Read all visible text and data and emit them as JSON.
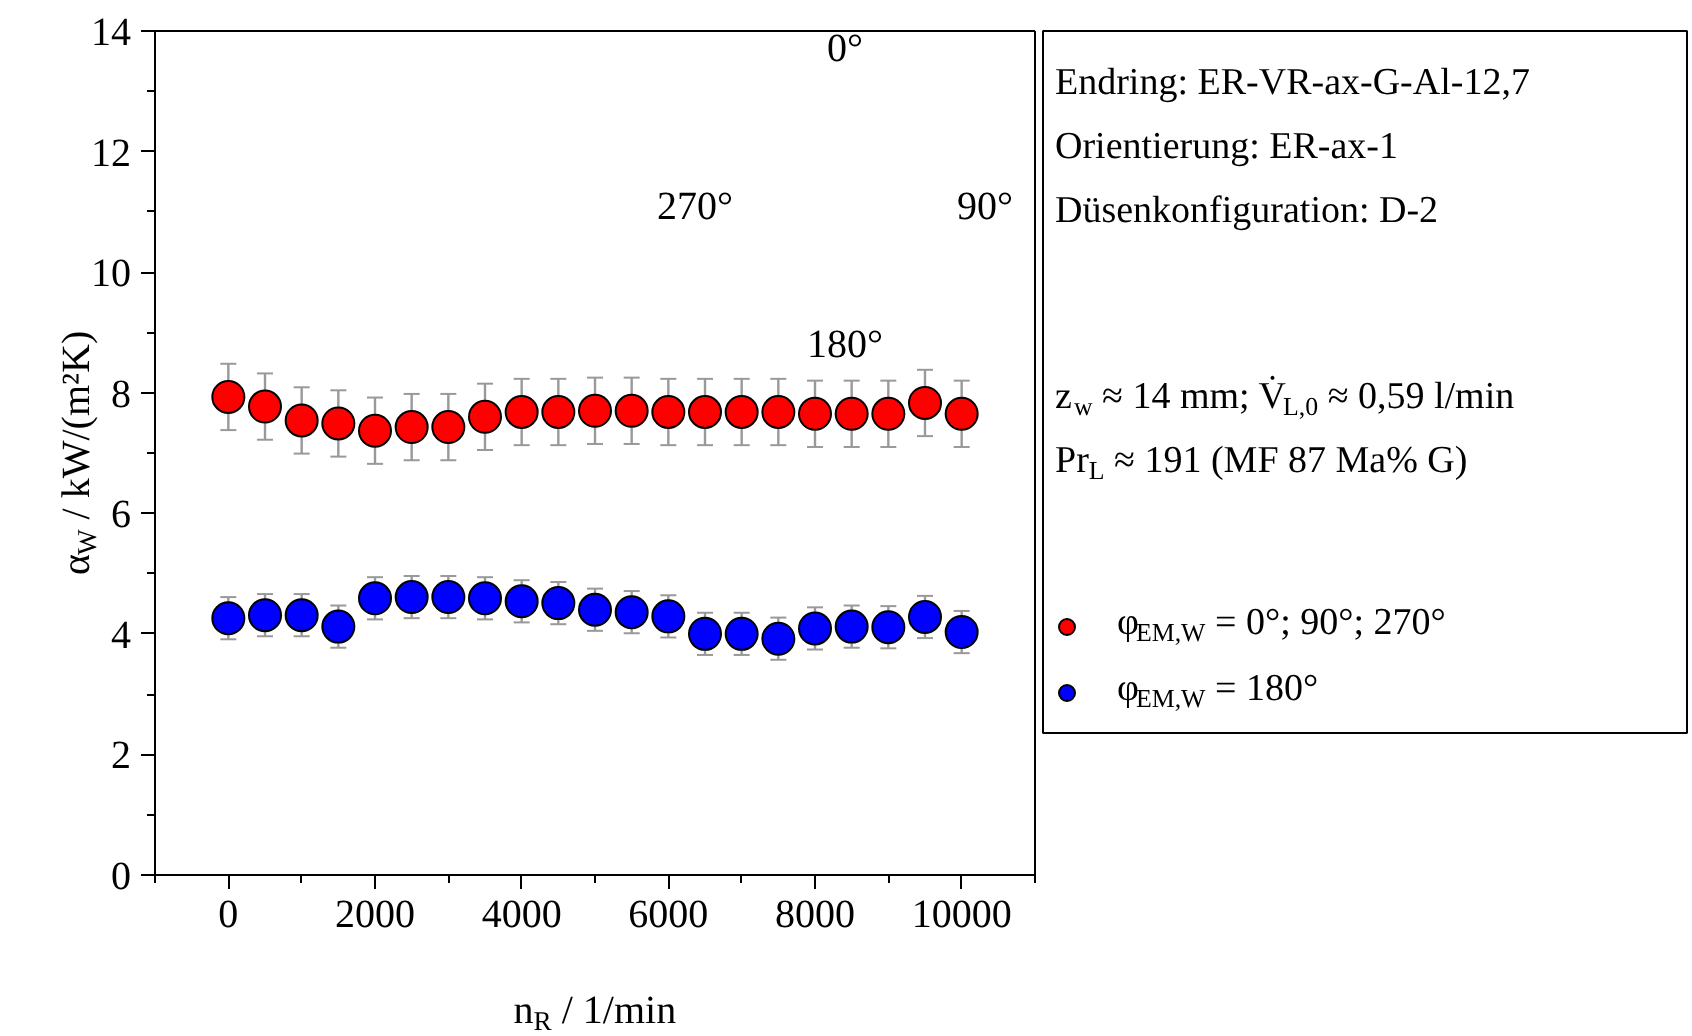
{
  "chart_data": {
    "type": "scatter",
    "xlabel": "n$_{R}$ / 1/min",
    "ylabel": "α$_{W}$ / kW/(m²K)",
    "x": [
      0,
      500,
      1000,
      1500,
      2000,
      2500,
      3000,
      3500,
      4000,
      4500,
      5000,
      5500,
      6000,
      6500,
      7000,
      7500,
      8000,
      8500,
      9000,
      9500,
      10000
    ],
    "series": [
      {
        "name": "φ$_{EM,W}$ = 0°; 90°; 270°",
        "color": "#ff0000",
        "values": [
          7.93,
          7.77,
          7.54,
          7.49,
          7.37,
          7.43,
          7.43,
          7.6,
          7.68,
          7.68,
          7.7,
          7.7,
          7.68,
          7.68,
          7.68,
          7.68,
          7.65,
          7.65,
          7.65,
          7.83,
          7.65
        ],
        "errors": [
          0.55,
          0.55,
          0.55,
          0.55,
          0.55,
          0.55,
          0.55,
          0.55,
          0.55,
          0.55,
          0.55,
          0.55,
          0.55,
          0.55,
          0.55,
          0.55,
          0.55,
          0.55,
          0.55,
          0.55,
          0.55
        ]
      },
      {
        "name": "φ$_{EM,W}$ = 180°",
        "color": "#0000ff",
        "values": [
          4.26,
          4.31,
          4.31,
          4.12,
          4.59,
          4.61,
          4.61,
          4.59,
          4.54,
          4.51,
          4.4,
          4.36,
          4.29,
          4.0,
          4.0,
          3.92,
          4.09,
          4.12,
          4.11,
          4.28,
          4.03
        ],
        "errors": [
          0.35,
          0.35,
          0.35,
          0.35,
          0.35,
          0.35,
          0.35,
          0.35,
          0.35,
          0.35,
          0.35,
          0.35,
          0.35,
          0.35,
          0.35,
          0.35,
          0.35,
          0.35,
          0.35,
          0.35,
          0.35
        ]
      }
    ],
    "xlim": [
      -1000,
      11000
    ],
    "xticks": [
      0,
      2000,
      4000,
      6000,
      8000,
      10000
    ],
    "ylim": [
      0,
      14
    ],
    "yticks": [
      0,
      2,
      4,
      6,
      8,
      10,
      12,
      14
    ],
    "marker": "circle",
    "grid": false,
    "legend": "right",
    "annotations": [
      "Endring: ER-VR-ax-G-Al-12,7",
      "Orientierung: ER-ax-1",
      "Düsenkonfiguration: D-2",
      "z$_{w}$ ≈ 14 mm; V̇$_{L,0}$ ≈ 0,59 l/min",
      "Pr$_{L}$ ≈ 191 (MF 87 Ma% G)",
      "0°",
      "90°",
      "180°",
      "270°"
    ]
  }
}
